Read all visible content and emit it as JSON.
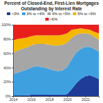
{
  "chart_data": {
    "type": "area",
    "title": "Percent of Closed-End, First-Lien Mortgages Outstanding by Interest Rate",
    "stacked": true,
    "grid": false,
    "legend": "top",
    "x": [
      2014,
      2014.5,
      2015,
      2015.5,
      2016,
      2016.5,
      2017,
      2017.5,
      2018,
      2018.5,
      2019,
      2019.5,
      2020,
      2020.5,
      2021,
      2021.5,
      2022,
      2022.5,
      2023,
      2023.5
    ],
    "xlim": [
      2014,
      2023.5
    ],
    "xticks": [
      2014,
      2016,
      2018,
      2020,
      2022
    ],
    "ylim": [
      0,
      100
    ],
    "yticks": [
      {
        "value": 0,
        "label": "0%"
      },
      {
        "value": 20,
        "label": "20%"
      },
      {
        "value": 40,
        "label": "40%"
      },
      {
        "value": 60,
        "label": "60%"
      },
      {
        "value": 80,
        "label": "80%"
      },
      {
        "value": 100,
        "label": "100%"
      }
    ],
    "series": [
      {
        "name": "<3%",
        "color": "#1f3c98",
        "values": [
          1,
          1,
          1,
          1,
          2,
          2,
          2,
          2,
          2,
          2,
          2,
          2,
          3,
          10,
          18,
          24,
          28,
          29,
          27,
          24
        ]
      },
      {
        "name": "3% to <4%",
        "color": "#3fa0e0",
        "values": [
          30,
          32,
          34,
          36,
          38,
          40,
          39,
          38,
          36,
          34,
          33,
          34,
          38,
          42,
          43,
          42,
          41,
          40,
          39,
          38
        ]
      },
      {
        "name": "4% to <5%",
        "color": "#a6a6a6",
        "values": [
          30,
          31,
          31,
          31,
          31,
          31,
          32,
          33,
          34,
          35,
          36,
          36,
          34,
          30,
          25,
          22,
          19,
          18,
          17,
          17
        ]
      },
      {
        "name": "5% to <6%",
        "color": "#f5b800",
        "values": [
          17,
          16,
          15,
          14,
          13,
          12,
          12,
          12,
          13,
          14,
          14,
          14,
          13,
          11,
          8,
          7,
          6,
          6,
          7,
          9
        ]
      },
      {
        "name": ">6%",
        "color": "#e8201c",
        "values": [
          22,
          20,
          19,
          18,
          16,
          15,
          15,
          15,
          15,
          15,
          15,
          14,
          12,
          7,
          6,
          5,
          6,
          7,
          10,
          12
        ]
      }
    ]
  }
}
